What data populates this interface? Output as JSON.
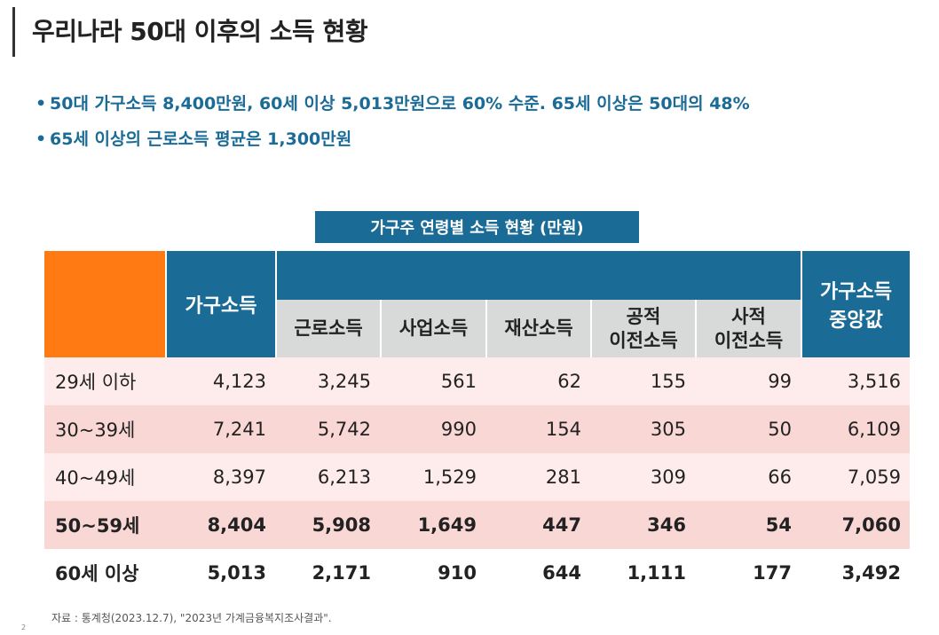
{
  "title": "우리나라 50대 이후의 소득 현황",
  "bullets": [
    "50대 가구소득 8,400만원, 60세 이상 5,013만원으로 60% 수준. 65세 이상은 50대의 48%",
    "65세 이상의 근로소득 평균은 1,300만원"
  ],
  "bullet_marker": "•",
  "table": {
    "caption": "가구주 연령별 소득 현황 (만원)",
    "headers": {
      "household_income": "가구소득",
      "sub": [
        "근로소득",
        "사업소득",
        "재산소득",
        "공적\n이전소득",
        "사적\n이전소득"
      ],
      "median": "가구소득\n중앙값"
    },
    "rows": [
      {
        "label": "29세 이하",
        "values": [
          "4,123",
          "3,245",
          "561",
          "62",
          "155",
          "99",
          "3,516"
        ],
        "bold": false
      },
      {
        "label": "30~39세",
        "values": [
          "7,241",
          "5,742",
          "990",
          "154",
          "305",
          "50",
          "6,109"
        ],
        "bold": false
      },
      {
        "label": "40~49세",
        "values": [
          "8,397",
          "6,213",
          "1,529",
          "281",
          "309",
          "66",
          "7,059"
        ],
        "bold": false
      },
      {
        "label": "50~59세",
        "values": [
          "8,404",
          "5,908",
          "1,649",
          "447",
          "346",
          "54",
          "7,060"
        ],
        "bold": true
      },
      {
        "label": "60세 이상",
        "values": [
          "5,013",
          "2,171",
          "910",
          "644",
          "1,111",
          "177",
          "3,492"
        ],
        "bold": true
      }
    ]
  },
  "source": "자료 : 통계청(2023.12.7), \"2023년 가계금융복지조사결과\".",
  "page_number": "2",
  "colors": {
    "accent_blue": "#1b6b97",
    "orange": "#ff7a12",
    "row_pink": "#f9d7d5",
    "row_light": "#fdeceb"
  }
}
